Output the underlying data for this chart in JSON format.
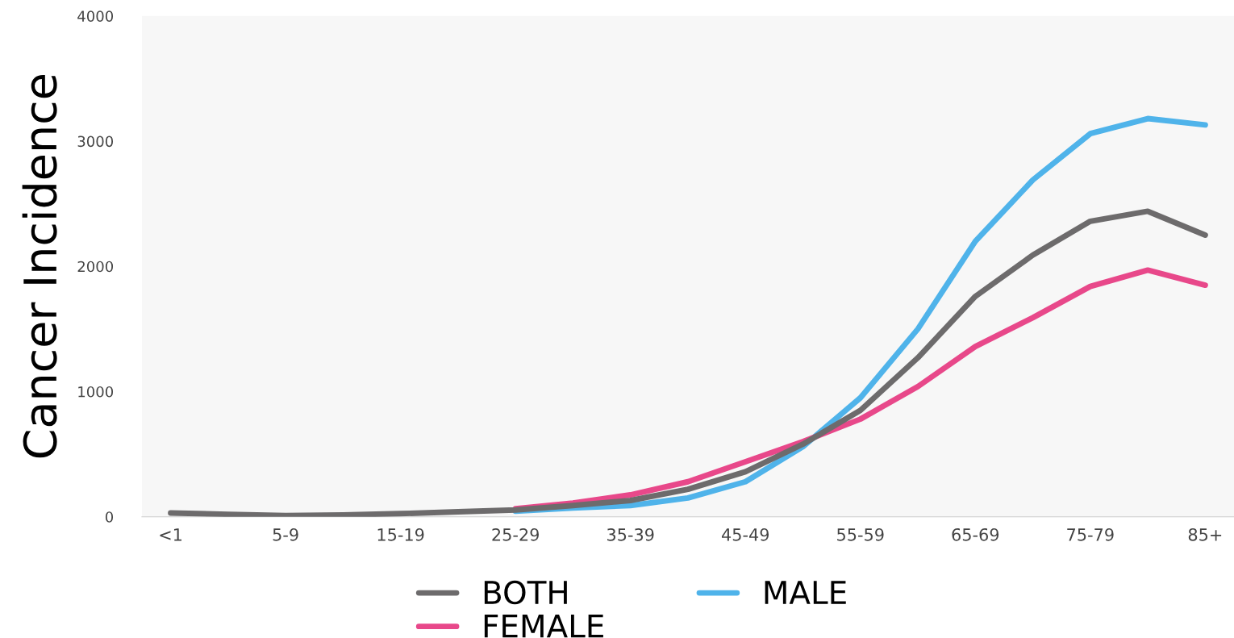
{
  "chart_data": {
    "type": "line",
    "ylabel": "Cancer Incidence",
    "categories": [
      "<1",
      null,
      "5-9",
      null,
      "15-19",
      null,
      "25-29",
      null,
      "35-39",
      null,
      "45-49",
      null,
      "55-59",
      null,
      "65-69",
      null,
      "75-79",
      null,
      "85+"
    ],
    "series": [
      {
        "name": "BOTH",
        "color": "#6d6b6c",
        "values": [
          30,
          20,
          10,
          15,
          25,
          40,
          55,
          90,
          130,
          220,
          360,
          580,
          850,
          1270,
          1760,
          2090,
          2360,
          2440,
          2250
        ]
      },
      {
        "name": "FEMALE",
        "color": "#e8488a",
        "values": [
          null,
          null,
          null,
          null,
          null,
          null,
          65,
          110,
          175,
          280,
          440,
          600,
          780,
          1040,
          1360,
          1590,
          1840,
          1970,
          1850
        ]
      },
      {
        "name": "MALE",
        "color": "#4fb3ea",
        "values": [
          null,
          null,
          null,
          null,
          null,
          null,
          45,
          70,
          90,
          150,
          280,
          560,
          950,
          1500,
          2200,
          2690,
          3060,
          3180,
          3130
        ]
      }
    ],
    "ylim": [
      0,
      4000
    ],
    "yticks": [
      0,
      1000,
      2000,
      3000,
      4000
    ],
    "grid": false,
    "legend": "bottom",
    "marker": "none",
    "line_style": "solid"
  }
}
